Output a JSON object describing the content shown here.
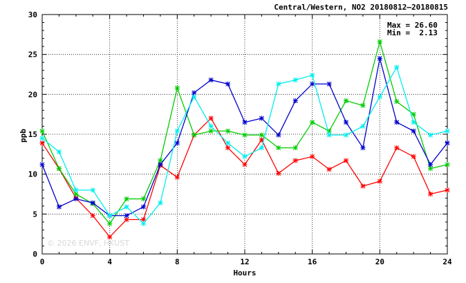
{
  "chart_data": {
    "type": "line",
    "title": "Central/Western, NO2 20180812–20180815",
    "xlabel": "Hours",
    "ylabel": "ppb",
    "xlim": [
      0,
      24
    ],
    "ylim": [
      0,
      30
    ],
    "x_ticks": [
      0,
      4,
      8,
      12,
      16,
      20,
      24
    ],
    "y_ticks": [
      0,
      5,
      10,
      15,
      20,
      25,
      30
    ],
    "grid": true,
    "stats": {
      "max": "Max = 26.60",
      "min": "Min =  2.13"
    },
    "watermark": "© 2026 ENVF, HKUST",
    "x": [
      0,
      1,
      2,
      3,
      4,
      5,
      6,
      7,
      8,
      9,
      10,
      11,
      12,
      13,
      14,
      15,
      16,
      17,
      18,
      19,
      20,
      21,
      22,
      23,
      24
    ],
    "series": [
      {
        "color": "#ff0000",
        "values": [
          13.9,
          10.7,
          7.0,
          4.8,
          2.13,
          4.3,
          4.3,
          11.1,
          9.6,
          14.9,
          17.0,
          13.3,
          11.2,
          14.3,
          10.1,
          11.7,
          12.2,
          10.6,
          11.7,
          8.5,
          9.1,
          13.3,
          12.2,
          7.5,
          8.0
        ]
      },
      {
        "color": "#00cc00",
        "values": [
          15.4,
          10.7,
          7.5,
          6.3,
          3.8,
          6.9,
          6.9,
          11.7,
          20.8,
          14.9,
          15.4,
          15.4,
          14.9,
          14.9,
          13.3,
          13.3,
          16.5,
          15.4,
          19.2,
          18.6,
          26.6,
          19.1,
          17.5,
          10.7,
          11.2
        ]
      },
      {
        "color": "#0000cc",
        "values": [
          11.2,
          5.9,
          6.9,
          6.4,
          4.8,
          4.8,
          5.9,
          11.2,
          13.9,
          20.2,
          21.8,
          21.3,
          16.5,
          17.0,
          14.9,
          19.2,
          21.3,
          21.3,
          16.5,
          13.3,
          24.5,
          16.5,
          15.4,
          11.2,
          13.9
        ]
      },
      {
        "color": "#00eeee",
        "values": [
          14.5,
          12.8,
          8.0,
          8.0,
          4.8,
          5.9,
          3.8,
          6.4,
          15.4,
          19.7,
          16.0,
          13.9,
          12.2,
          13.3,
          21.3,
          21.8,
          22.4,
          14.9,
          14.9,
          16.0,
          19.7,
          23.4,
          16.5,
          14.9,
          15.4
        ]
      }
    ]
  }
}
